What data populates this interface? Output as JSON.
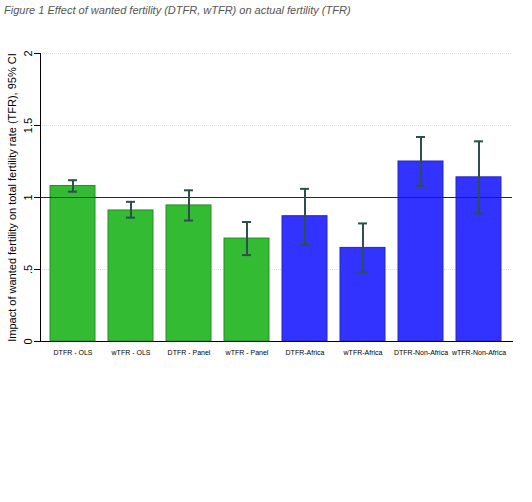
{
  "chart_data": {
    "type": "bar",
    "title": "Figure 1 Effect of wanted fertility (DTFR, wTFR) on actual fertility (TFR)",
    "y_label": "Impact of wanted fertility on total fertility rate (TFR), 95% CI",
    "categories": [
      "DTFR - OLS",
      "wTFR - OLS",
      "DTFR - Panel",
      "wTFR - Panel",
      "DTFR-Africa",
      "wTFR-Africa",
      "DTFR-Non-Africa",
      "wTFR-Non-Africa"
    ],
    "values": [
      1.08,
      0.91,
      0.945,
      0.715,
      0.87,
      0.65,
      1.25,
      1.14
    ],
    "ci_low": [
      1.04,
      0.86,
      0.84,
      0.6,
      0.67,
      0.48,
      1.08,
      0.89
    ],
    "ci_high": [
      1.12,
      0.97,
      1.05,
      0.83,
      1.06,
      0.82,
      1.42,
      1.39
    ],
    "colors": [
      "#33bb33",
      "#33bb33",
      "#33bb33",
      "#33bb33",
      "#3333ff",
      "#3333ff",
      "#3333ff",
      "#3333ff"
    ],
    "reference_line": 1,
    "ylim": [
      0,
      2
    ],
    "yticks": [
      0,
      {
        "value": 0.5,
        "label": ".5"
      },
      1,
      1.5,
      2
    ],
    "grid": true
  }
}
